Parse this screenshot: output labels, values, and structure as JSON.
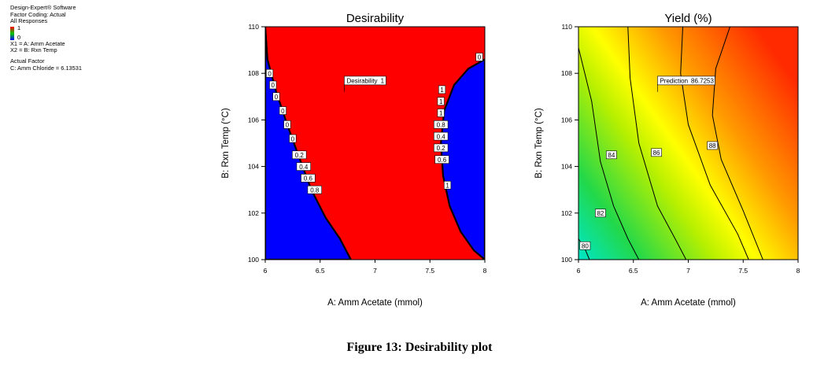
{
  "info": {
    "software": "Design-Expert® Software",
    "coding": "Factor Coding: Actual",
    "responses": "All Responses",
    "legend_max": "1",
    "legend_min": "0",
    "x1": "X1 = A: Amm Acetate",
    "x2": "X2 = B: Rxn Temp",
    "actual_factor_heading": "Actual Factor",
    "actual_factor": "C: Amm Chloride = 6.13531"
  },
  "figure_caption": "Figure 13: Desirability plot",
  "colors": {
    "desirable": "#ff0000",
    "undesirable": "#0000ff",
    "yield_low": "#00e6c8",
    "yield_mid": "#ffff00",
    "yield_high": "#ff2a00"
  },
  "chart_data": [
    {
      "type": "heatmap",
      "title": "Desirability",
      "xlabel": "A: Amm Acetate (mmol)",
      "ylabel": "B: Rxn Temp (°C)",
      "xlim": [
        6,
        8
      ],
      "ylim": [
        100,
        110
      ],
      "xticks": [
        "6",
        "6.5",
        "7",
        "7.5",
        "8"
      ],
      "yticks": [
        "100",
        "102",
        "104",
        "106",
        "108",
        "110"
      ],
      "grid": false,
      "regions": [
        {
          "name": "left",
          "value": 0,
          "boundary": [
            [
              6.0,
              110
            ],
            [
              6.02,
              108.6
            ],
            [
              6.1,
              107.2
            ],
            [
              6.2,
              105.8
            ],
            [
              6.3,
              104.5
            ],
            [
              6.42,
              103.0
            ],
            [
              6.55,
              101.8
            ],
            [
              6.68,
              100.9
            ],
            [
              6.78,
              100
            ]
          ]
        },
        {
          "name": "right",
          "value": 0,
          "boundary": [
            [
              8.0,
              108.6
            ],
            [
              7.85,
              108.2
            ],
            [
              7.72,
              107.5
            ],
            [
              7.63,
              106.4
            ],
            [
              7.6,
              105.0
            ],
            [
              7.62,
              103.6
            ],
            [
              7.68,
              102.3
            ],
            [
              7.78,
              101.2
            ],
            [
              7.9,
              100.4
            ],
            [
              8.0,
              100
            ]
          ]
        }
      ],
      "contour_labels": [
        {
          "label": "0",
          "x": 6.04,
          "y": 108.0
        },
        {
          "label": "0",
          "x": 6.07,
          "y": 107.5
        },
        {
          "label": "0",
          "x": 6.1,
          "y": 107.0
        },
        {
          "label": "0",
          "x": 6.16,
          "y": 106.4
        },
        {
          "label": "0",
          "x": 6.2,
          "y": 105.8
        },
        {
          "label": "0",
          "x": 6.25,
          "y": 105.2
        },
        {
          "label": "0.2",
          "x": 6.31,
          "y": 104.5
        },
        {
          "label": "0.4",
          "x": 6.35,
          "y": 104.0
        },
        {
          "label": "0.6",
          "x": 6.39,
          "y": 103.5
        },
        {
          "label": "0.8",
          "x": 6.45,
          "y": 103.0
        },
        {
          "label": "1",
          "x": 7.61,
          "y": 107.3
        },
        {
          "label": "1",
          "x": 7.6,
          "y": 106.8
        },
        {
          "label": "1",
          "x": 7.6,
          "y": 106.3
        },
        {
          "label": "0.8",
          "x": 7.6,
          "y": 105.8
        },
        {
          "label": "0.4",
          "x": 7.6,
          "y": 105.3
        },
        {
          "label": "0.2",
          "x": 7.6,
          "y": 104.8
        },
        {
          "label": "0.6",
          "x": 7.61,
          "y": 104.3
        },
        {
          "label": "1",
          "x": 7.66,
          "y": 103.2
        },
        {
          "label": "0",
          "x": 7.95,
          "y": 108.7
        }
      ],
      "annotation": {
        "label": "Desirability",
        "value": "1",
        "x": 6.72,
        "y": 107.2
      }
    },
    {
      "type": "heatmap",
      "title": "Yield (%)",
      "xlabel": "A: Amm Acetate (mmol)",
      "ylabel": "B: Rxn Temp (°C)",
      "xlim": [
        6,
        8
      ],
      "ylim": [
        100,
        110
      ],
      "xticks": [
        "6",
        "6.5",
        "7",
        "7.5",
        "8"
      ],
      "yticks": [
        "100",
        "102",
        "104",
        "106",
        "108",
        "110"
      ],
      "grid": false,
      "contours": [
        {
          "value": 80,
          "points": [
            [
              6.0,
              100.9
            ],
            [
              6.06,
              100.45
            ],
            [
              6.1,
              100
            ]
          ]
        },
        {
          "value": 82,
          "points": [
            [
              6.0,
              109.1
            ],
            [
              6.12,
              106.8
            ],
            [
              6.2,
              104.2
            ],
            [
              6.32,
              102.3
            ],
            [
              6.45,
              100.9
            ],
            [
              6.55,
              100
            ]
          ]
        },
        {
          "value": 84,
          "points": [
            [
              6.45,
              110
            ],
            [
              6.47,
              107.8
            ],
            [
              6.55,
              105.0
            ],
            [
              6.72,
              102.3
            ],
            [
              6.88,
              100.9
            ],
            [
              6.98,
              100
            ]
          ]
        },
        {
          "value": 86,
          "points": [
            [
              6.95,
              110
            ],
            [
              6.93,
              108.0
            ],
            [
              7.0,
              105.8
            ],
            [
              7.2,
              103.2
            ],
            [
              7.45,
              101.1
            ],
            [
              7.55,
              100
            ]
          ]
        },
        {
          "value": 88,
          "points": [
            [
              7.38,
              110
            ],
            [
              7.25,
              108.2
            ],
            [
              7.22,
              106.2
            ],
            [
              7.3,
              104.3
            ],
            [
              7.5,
              102.1
            ],
            [
              7.68,
              100
            ]
          ]
        }
      ],
      "contour_labels": [
        {
          "label": "80",
          "x": 6.06,
          "y": 100.6
        },
        {
          "label": "82",
          "x": 6.2,
          "y": 102.0
        },
        {
          "label": "84",
          "x": 6.3,
          "y": 104.5
        },
        {
          "label": "86",
          "x": 6.71,
          "y": 104.6
        },
        {
          "label": "88",
          "x": 7.22,
          "y": 104.9
        }
      ],
      "annotation": {
        "label": "Prediction",
        "value": "86.7253",
        "x": 6.72,
        "y": 107.2
      }
    }
  ]
}
